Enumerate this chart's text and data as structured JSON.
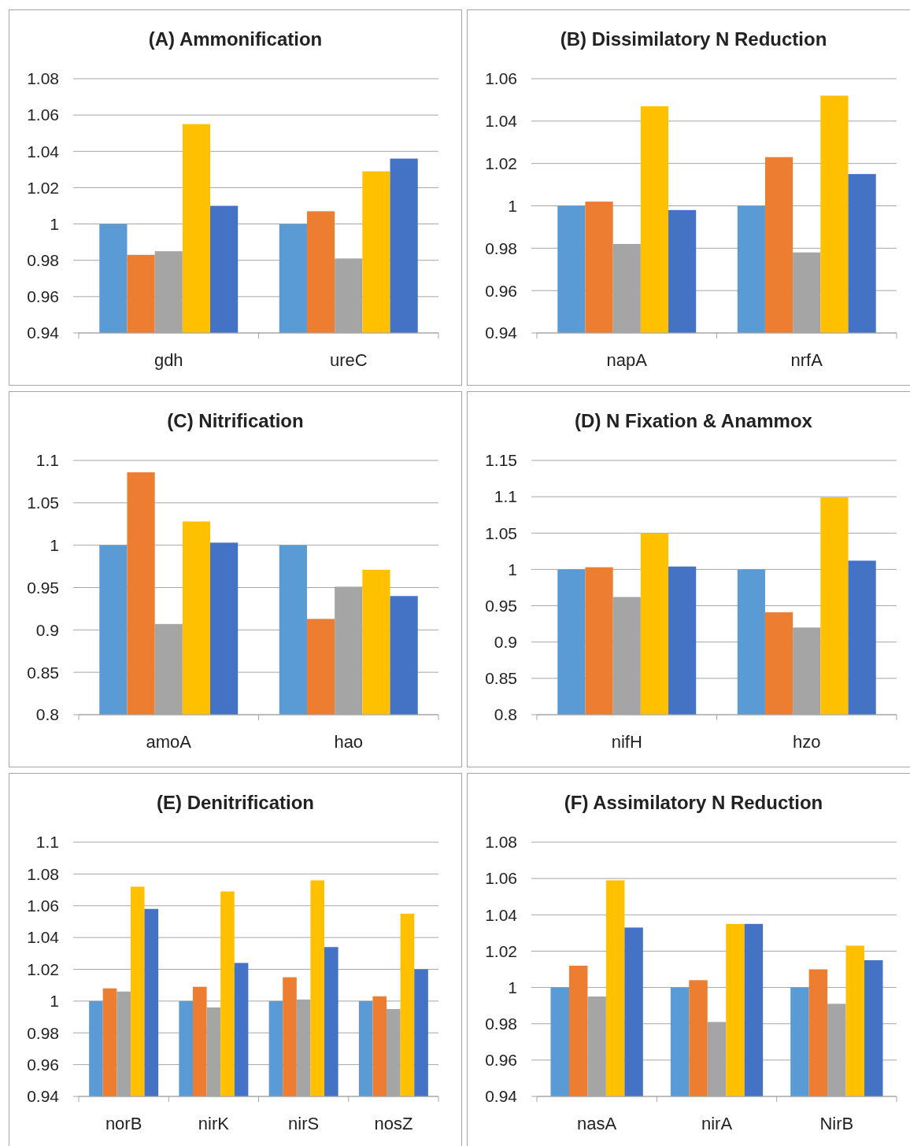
{
  "chart_data": [
    {
      "type": "bar",
      "title": "(A) Ammonification",
      "categories": [
        "gdh",
        "ureC"
      ],
      "ylim": [
        0.94,
        1.08
      ],
      "yticks": [
        0.94,
        0.96,
        0.98,
        1,
        1.02,
        1.04,
        1.06,
        1.08
      ],
      "grid": "y",
      "series": [
        {
          "color": "#5b9bd5",
          "values": [
            1.0,
            1.0
          ]
        },
        {
          "color": "#ed7d31",
          "values": [
            0.983,
            1.007
          ]
        },
        {
          "color": "#a5a5a5",
          "values": [
            0.985,
            0.981
          ]
        },
        {
          "color": "#ffc000",
          "values": [
            1.055,
            1.029
          ]
        },
        {
          "color": "#4472c4",
          "values": [
            1.01,
            1.036
          ]
        }
      ]
    },
    {
      "type": "bar",
      "title": "(B) Dissimilatory N Reduction",
      "categories": [
        "napA",
        "nrfA"
      ],
      "ylim": [
        0.94,
        1.06
      ],
      "yticks": [
        0.94,
        0.96,
        0.98,
        1,
        1.02,
        1.04,
        1.06
      ],
      "grid": "y",
      "series": [
        {
          "color": "#5b9bd5",
          "values": [
            1.0,
            1.0
          ]
        },
        {
          "color": "#ed7d31",
          "values": [
            1.002,
            1.023
          ]
        },
        {
          "color": "#a5a5a5",
          "values": [
            0.982,
            0.978
          ]
        },
        {
          "color": "#ffc000",
          "values": [
            1.047,
            1.052
          ]
        },
        {
          "color": "#4472c4",
          "values": [
            0.998,
            1.015
          ]
        }
      ]
    },
    {
      "type": "bar",
      "title": "(C) Nitrification",
      "categories": [
        "amoA",
        "hao"
      ],
      "ylim": [
        0.8,
        1.1
      ],
      "yticks": [
        0.8,
        0.85,
        0.9,
        0.95,
        1,
        1.05,
        1.1
      ],
      "grid": "y",
      "series": [
        {
          "color": "#5b9bd5",
          "values": [
            1.0,
            1.0
          ]
        },
        {
          "color": "#ed7d31",
          "values": [
            1.086,
            0.913
          ]
        },
        {
          "color": "#a5a5a5",
          "values": [
            0.907,
            0.951
          ]
        },
        {
          "color": "#ffc000",
          "values": [
            1.028,
            0.971
          ]
        },
        {
          "color": "#4472c4",
          "values": [
            1.003,
            0.94
          ]
        }
      ]
    },
    {
      "type": "bar",
      "title": "(D) N Fixation & Anammox",
      "categories": [
        "nifH",
        "hzo"
      ],
      "ylim": [
        0.8,
        1.15
      ],
      "yticks": [
        0.8,
        0.85,
        0.9,
        0.95,
        1,
        1.05,
        1.1,
        1.15
      ],
      "grid": "y",
      "series": [
        {
          "color": "#5b9bd5",
          "values": [
            1.0,
            1.0
          ]
        },
        {
          "color": "#ed7d31",
          "values": [
            1.003,
            0.941
          ]
        },
        {
          "color": "#a5a5a5",
          "values": [
            0.962,
            0.92
          ]
        },
        {
          "color": "#ffc000",
          "values": [
            1.05,
            1.099
          ]
        },
        {
          "color": "#4472c4",
          "values": [
            1.004,
            1.012
          ]
        }
      ]
    },
    {
      "type": "bar",
      "title": "(E) Denitrification",
      "categories": [
        "norB",
        "nirK",
        "nirS",
        "nosZ"
      ],
      "ylim": [
        0.94,
        1.1
      ],
      "yticks": [
        0.94,
        0.96,
        0.98,
        1,
        1.02,
        1.04,
        1.06,
        1.08,
        1.1
      ],
      "grid": "y",
      "series": [
        {
          "color": "#5b9bd5",
          "values": [
            1.0,
            1.0,
            1.0,
            1.0
          ]
        },
        {
          "color": "#ed7d31",
          "values": [
            1.008,
            1.009,
            1.015,
            1.003
          ]
        },
        {
          "color": "#a5a5a5",
          "values": [
            1.006,
            0.996,
            1.001,
            0.995
          ]
        },
        {
          "color": "#ffc000",
          "values": [
            1.072,
            1.069,
            1.076,
            1.055
          ]
        },
        {
          "color": "#4472c4",
          "values": [
            1.058,
            1.024,
            1.034,
            1.02
          ]
        }
      ]
    },
    {
      "type": "bar",
      "title": "(F) Assimilatory N Reduction",
      "categories": [
        "nasA",
        "nirA",
        "NirB"
      ],
      "ylim": [
        0.94,
        1.08
      ],
      "yticks": [
        0.94,
        0.96,
        0.98,
        1,
        1.02,
        1.04,
        1.06,
        1.08
      ],
      "grid": "y",
      "series": [
        {
          "color": "#5b9bd5",
          "values": [
            1.0,
            1.0,
            1.0
          ]
        },
        {
          "color": "#ed7d31",
          "values": [
            1.012,
            1.004,
            1.01
          ]
        },
        {
          "color": "#a5a5a5",
          "values": [
            0.995,
            0.981,
            0.991
          ]
        },
        {
          "color": "#ffc000",
          "values": [
            1.059,
            1.035,
            1.023
          ]
        },
        {
          "color": "#4472c4",
          "values": [
            1.033,
            1.035,
            1.015
          ]
        }
      ]
    }
  ]
}
